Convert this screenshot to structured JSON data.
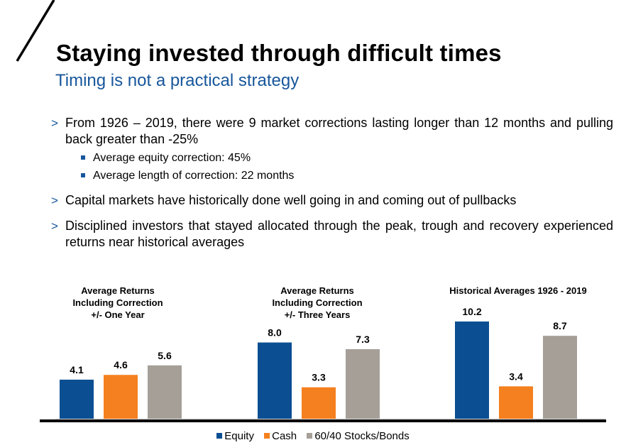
{
  "slide": {
    "title": "Staying invested through difficult times",
    "subtitle": "Timing is not a practical strategy"
  },
  "bullets": {
    "b1": "From 1926 – 2019, there were 9 market corrections lasting longer than 12 months and pulling  back greater than -25%",
    "b1_sub1": "Average equity correction:  45%",
    "b1_sub2": "Average length of correction: 22 months",
    "b2": "Capital markets have historically done well going in and coming out of pullbacks",
    "b3": "Disciplined investors that stayed allocated through the peak, trough and recovery experienced returns near historical averages",
    "marker": ">"
  },
  "colors": {
    "accent": "#17569b",
    "equity": "#0b4f92",
    "cash": "#f5801f",
    "stocks_bonds": "#a59f98"
  },
  "chart_data": {
    "type": "bar",
    "groups": [
      [
        "Average Returns",
        "Including Correction",
        "+/- One Year"
      ],
      [
        "Average Returns",
        "Including Correction",
        "+/- Three Years"
      ],
      [
        "Historical Averages 1926 - 2019"
      ]
    ],
    "series": [
      {
        "name": "Equity",
        "values": [
          4.1,
          8.0,
          10.2
        ]
      },
      {
        "name": "Cash",
        "values": [
          4.6,
          3.3,
          3.4
        ]
      },
      {
        "name": "60/40 Stocks/Bonds",
        "values": [
          5.6,
          7.3,
          8.7
        ]
      }
    ],
    "ylim": [
      0,
      10.2
    ],
    "legend": "bottom"
  }
}
